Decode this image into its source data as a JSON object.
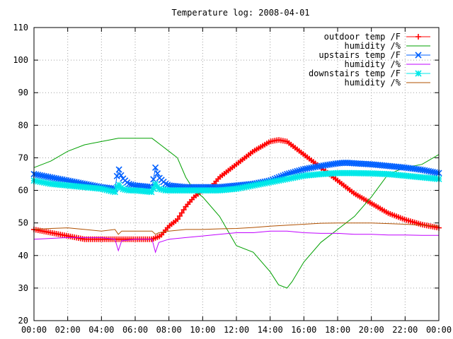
{
  "chart_data": {
    "type": "line",
    "title": "Temperature log: 2008-04-01",
    "xlabel": "",
    "ylabel": "",
    "ylim": [
      20,
      110
    ],
    "xlim": [
      0,
      24
    ],
    "x_ticks": [
      "00:00",
      "02:00",
      "04:00",
      "06:00",
      "08:00",
      "10:00",
      "12:00",
      "14:00",
      "16:00",
      "18:00",
      "20:00",
      "22:00",
      "00:00"
    ],
    "y_ticks": [
      20,
      30,
      40,
      50,
      60,
      70,
      80,
      90,
      100,
      110
    ],
    "grid": true,
    "legend_position": "top-right",
    "series": [
      {
        "name": "outdoor temp /F",
        "color": "#ff0000",
        "marker": "plus",
        "x": [
          0,
          1,
          2,
          3,
          4,
          5,
          6,
          7,
          7.5,
          8,
          8.5,
          9,
          9.5,
          10,
          10.5,
          11,
          12,
          13,
          14,
          14.5,
          15,
          15.5,
          16,
          17,
          18,
          19,
          20,
          21,
          22,
          23,
          24
        ],
        "y": [
          48,
          47,
          46,
          45,
          45,
          45,
          45,
          45,
          46,
          49,
          51,
          55,
          58,
          60,
          61,
          64,
          68,
          72,
          75,
          75.5,
          75,
          73,
          71,
          67,
          63,
          59,
          56,
          53,
          51,
          49.5,
          48.5
        ]
      },
      {
        "name": "humidity /%",
        "color": "#00a000",
        "marker": "none",
        "x": [
          0,
          1,
          2,
          3,
          4,
          5,
          6,
          7,
          7.5,
          8,
          8.5,
          9,
          9.5,
          10,
          11,
          12,
          13,
          14,
          14.5,
          15,
          15.3,
          16,
          17,
          18,
          19,
          20,
          21,
          22,
          23,
          24
        ],
        "y": [
          67,
          69,
          72,
          74,
          75,
          76,
          76,
          76,
          74,
          72,
          70,
          64,
          60,
          58,
          52,
          43,
          41,
          35,
          31,
          30,
          32,
          38,
          44,
          48,
          52,
          58,
          65,
          67,
          68,
          71
        ]
      },
      {
        "name": "upstairs temp /F",
        "color": "#0060ff",
        "marker": "cross",
        "x": [
          0,
          1,
          2,
          3,
          4,
          4.8,
          5,
          5.2,
          5.6,
          6,
          7,
          7.2,
          7.4,
          7.8,
          8,
          9,
          10,
          11,
          12,
          13,
          14,
          15,
          16,
          17,
          18,
          18.5,
          19,
          20,
          21,
          22,
          23,
          24
        ],
        "y": [
          65,
          64,
          63,
          62,
          61,
          60.5,
          67,
          64,
          62,
          61.5,
          61,
          67,
          64,
          62,
          61.5,
          61,
          61,
          61,
          61.5,
          62,
          63,
          65,
          66.5,
          67.5,
          68.3,
          68.5,
          68.3,
          68,
          67.5,
          67,
          66.3,
          65.3
        ]
      },
      {
        "name": "humidity /%",
        "color": "#c000ff",
        "marker": "none",
        "x": [
          0,
          2,
          4,
          4.8,
          5,
          5.2,
          6,
          7,
          7.2,
          7.4,
          8,
          9,
          10,
          11,
          12,
          13,
          14,
          15,
          16,
          17,
          18,
          19,
          20,
          21,
          22,
          23,
          24
        ],
        "y": [
          45,
          45.5,
          45.5,
          45,
          41.5,
          44.5,
          45,
          45,
          41,
          44,
          45,
          45.5,
          46,
          46.5,
          47,
          47,
          47.5,
          47.5,
          47,
          46.8,
          46.8,
          46.5,
          46.5,
          46.3,
          46.3,
          46.2,
          46.2
        ]
      },
      {
        "name": "downstairs temp /F",
        "color": "#00e8e8",
        "marker": "star",
        "x": [
          0,
          1,
          2,
          3,
          4,
          4.8,
          5,
          5.2,
          5.6,
          6,
          7,
          7.2,
          7.4,
          7.8,
          8,
          9,
          10,
          11,
          12,
          13,
          14,
          15,
          16,
          17,
          18,
          19,
          20,
          21,
          22,
          23,
          24
        ],
        "y": [
          63,
          62,
          61.5,
          61,
          60.5,
          59.5,
          62,
          60.5,
          60,
          60,
          59.5,
          62,
          60.5,
          60,
          60,
          60,
          60,
          60,
          60.5,
          61.5,
          62.5,
          63.5,
          64.5,
          65,
          65.3,
          65.3,
          65.2,
          65,
          64.5,
          64,
          63.5
        ]
      },
      {
        "name": "humidity /%",
        "color": "#b05000",
        "marker": "none",
        "x": [
          0,
          1,
          2,
          3,
          4,
          4.8,
          5,
          5.2,
          6,
          7,
          7.2,
          7.4,
          8,
          9,
          10,
          11,
          12,
          13,
          14,
          15,
          16,
          17,
          18,
          19,
          20,
          21,
          22,
          23,
          24
        ],
        "y": [
          48,
          48.3,
          48.5,
          48,
          47.5,
          48,
          46.5,
          47.5,
          47.5,
          47.5,
          46.5,
          47,
          47.5,
          48,
          48,
          48.2,
          48.3,
          48.6,
          49,
          49.3,
          49.6,
          49.9,
          50,
          50,
          50,
          49.8,
          49.6,
          49.3,
          49
        ]
      }
    ]
  }
}
